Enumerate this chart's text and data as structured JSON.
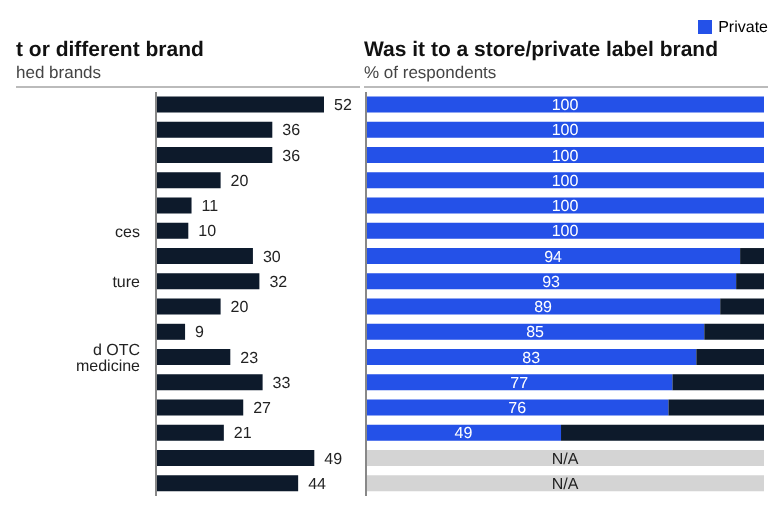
{
  "chart_data": [
    {
      "type": "bar",
      "orientation": "horizontal",
      "title": "t or different brand",
      "subtitle": "hed brands",
      "categories": [
        null,
        null,
        null,
        null,
        null,
        "ces",
        null,
        "ture",
        null,
        null,
        "d OTC medicine",
        null,
        null,
        null,
        null,
        null
      ],
      "series": [
        {
          "color": "#0d1a2b",
          "values": [
            52,
            36,
            36,
            20,
            11,
            10,
            30,
            32,
            20,
            9,
            23,
            33,
            27,
            21,
            49,
            44
          ]
        }
      ],
      "data_labels": true
    },
    {
      "type": "bar",
      "orientation": "horizontal",
      "stacked": true,
      "title": "Was it to a store/private label brand",
      "subtitle": "% of respondents",
      "categories": [
        null,
        null,
        null,
        null,
        null,
        null,
        null,
        null,
        null,
        null,
        null,
        null,
        null,
        null,
        null,
        null
      ],
      "tick_labels": false,
      "legend": "top right",
      "series": [
        {
          "name": "Private",
          "color": "#2451e8",
          "values": [
            100,
            100,
            100,
            100,
            100,
            100,
            94,
            93,
            89,
            85,
            83,
            77,
            76,
            49,
            null,
            null
          ],
          "value_labels": [
            "100",
            "100",
            "100",
            "100",
            "100",
            "100",
            "94",
            "93",
            "89",
            "85",
            "83",
            "77",
            "76",
            "49",
            null,
            null
          ]
        },
        {
          "color": "#0d1a2b",
          "values": [
            0,
            0,
            0,
            0,
            0,
            0,
            6,
            7,
            11,
            15,
            17,
            23,
            24,
            51,
            null,
            null
          ]
        },
        {
          "color": "#d4d4d4",
          "values": [
            null,
            null,
            null,
            null,
            null,
            null,
            null,
            null,
            null,
            null,
            null,
            null,
            null,
            null,
            100,
            100
          ],
          "value_labels": [
            null,
            null,
            null,
            null,
            null,
            null,
            null,
            null,
            null,
            null,
            null,
            null,
            null,
            null,
            "N/A",
            "N/A"
          ]
        }
      ]
    }
  ]
}
